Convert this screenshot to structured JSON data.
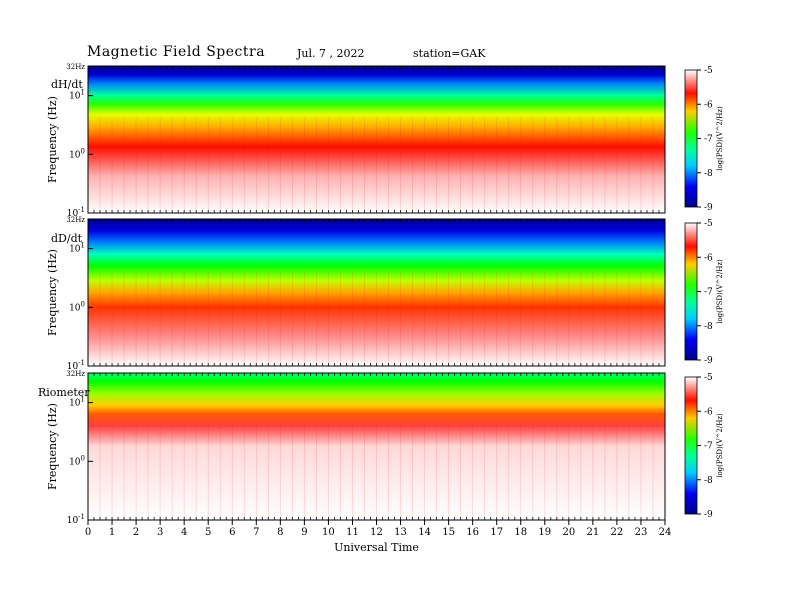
{
  "header": {
    "title": "Magnetic Field Spectra",
    "date": "Jul.  7  , 2022",
    "station": "station=GAK"
  },
  "colorbar": {
    "label": "log(PSD)(V^2/Hz)",
    "ticks": [
      "-5",
      "-6",
      "-7",
      "-8",
      "-9"
    ],
    "colors": [
      "#ffffff",
      "#ff0000",
      "#ffff00",
      "#00ff00",
      "#00ffff",
      "#0000ff",
      "#00008b"
    ]
  },
  "chart_data": [
    {
      "type": "heatmap",
      "panel": "dH/dt",
      "ylabel": "Frequency (Hz)",
      "ytick_labels": [
        "32Hz",
        "10^1",
        "10^0",
        "10^-1"
      ],
      "y_range": [
        0.1,
        32
      ],
      "y_scale": "log",
      "xlim": [
        0,
        24
      ],
      "colorbar_range": [
        -9,
        -5
      ]
    },
    {
      "type": "heatmap",
      "panel": "dD/dt",
      "ylabel": "Frequency (Hz)",
      "ytick_labels": [
        "32Hz",
        "10^1",
        "10^0",
        "10^-1"
      ],
      "y_range": [
        0.1,
        32
      ],
      "y_scale": "log",
      "xlim": [
        0,
        24
      ],
      "colorbar_range": [
        -9,
        -5
      ]
    },
    {
      "type": "heatmap",
      "panel": "Riometer",
      "ylabel": "Frequency (Hz)",
      "ytick_labels": [
        "32Hz",
        "10^1",
        "10^0",
        "10^-1"
      ],
      "y_range": [
        0.1,
        32
      ],
      "y_scale": "log",
      "xlim": [
        0,
        24
      ],
      "colorbar_range": [
        -9,
        -5
      ]
    }
  ],
  "xaxis": {
    "label": "Universal Time",
    "ticks": [
      "0",
      "1",
      "2",
      "3",
      "4",
      "5",
      "6",
      "7",
      "8",
      "9",
      "10",
      "11",
      "12",
      "13",
      "14",
      "15",
      "16",
      "17",
      "18",
      "19",
      "20",
      "21",
      "22",
      "23",
      "24"
    ]
  }
}
